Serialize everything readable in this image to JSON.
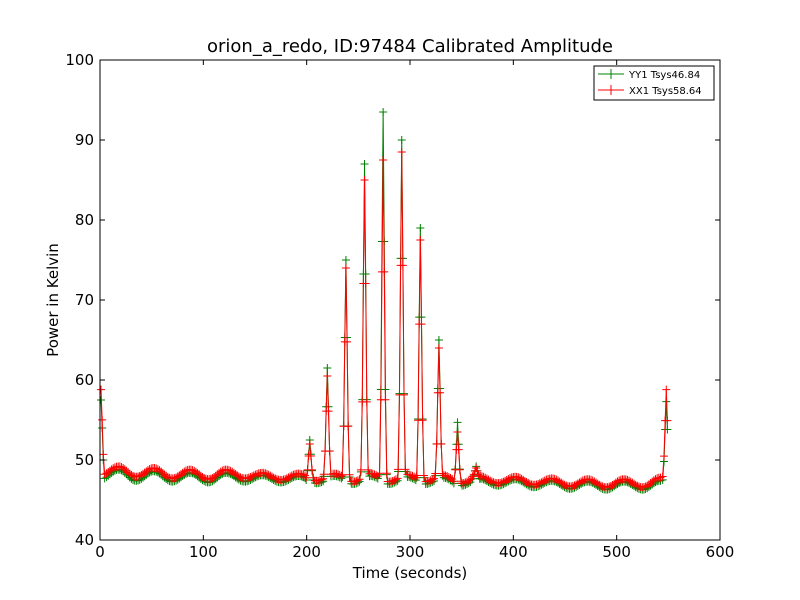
{
  "chart_data": {
    "type": "line",
    "title": "orion_a_redo, ID:97484 Calibrated Amplitude",
    "xlabel": "Time (seconds)",
    "ylabel": "Power in Kelvin",
    "xlim": [
      0,
      600
    ],
    "ylim": [
      40,
      100
    ],
    "xticks": [
      "0",
      "100",
      "200",
      "300",
      "400",
      "500",
      "600"
    ],
    "yticks": [
      "40",
      "50",
      "60",
      "70",
      "80",
      "90",
      "100"
    ],
    "grid": false,
    "legend_position": "top-right",
    "marker": "plus",
    "series": [
      {
        "name": "YY1 Tsys46.84",
        "color": "#008000",
        "baseline": {
          "x": [
            0,
            18,
            35,
            52,
            70,
            87,
            105,
            122,
            140,
            157,
            175,
            192,
            210,
            227,
            245,
            262,
            280,
            297,
            315,
            332,
            350,
            367,
            385,
            402,
            420,
            437,
            455,
            472,
            490,
            507,
            525,
            542,
            550
          ],
          "y": [
            47.5,
            48.8,
            47.4,
            48.6,
            47.3,
            48.4,
            47.2,
            48.4,
            47.3,
            48.1,
            47.2,
            48.0,
            47.1,
            48.0,
            47.0,
            48.0,
            47.0,
            47.9,
            47.0,
            47.8,
            46.8,
            47.7,
            46.8,
            47.6,
            46.6,
            47.4,
            46.4,
            47.3,
            46.3,
            47.3,
            46.3,
            47.4,
            47.3
          ]
        },
        "peaks": [
          {
            "x": 1,
            "y": 57.5
          },
          {
            "x": 203,
            "y": 52.5
          },
          {
            "x": 220,
            "y": 61.5
          },
          {
            "x": 238,
            "y": 75.0
          },
          {
            "x": 256,
            "y": 87.0
          },
          {
            "x": 274,
            "y": 93.5
          },
          {
            "x": 292,
            "y": 90.0
          },
          {
            "x": 310,
            "y": 79.0
          },
          {
            "x": 328,
            "y": 65.0
          },
          {
            "x": 346,
            "y": 54.7
          },
          {
            "x": 364,
            "y": 49.2
          },
          {
            "x": 548,
            "y": 57.3
          }
        ]
      },
      {
        "name": "XX1 Tsys58.64",
        "color": "#ff0000",
        "baseline": {
          "x": [
            0,
            18,
            35,
            52,
            70,
            87,
            105,
            122,
            140,
            157,
            175,
            192,
            210,
            227,
            245,
            262,
            280,
            297,
            315,
            332,
            350,
            367,
            385,
            402,
            420,
            437,
            455,
            472,
            490,
            507,
            525,
            542,
            550
          ],
          "y": [
            48.0,
            49.2,
            47.9,
            49.0,
            47.7,
            48.8,
            47.6,
            48.8,
            47.7,
            48.4,
            47.5,
            48.3,
            47.4,
            48.3,
            47.3,
            48.3,
            47.3,
            48.2,
            47.3,
            48.1,
            47.1,
            48.0,
            47.1,
            47.9,
            46.9,
            47.7,
            46.7,
            47.6,
            46.6,
            47.6,
            46.6,
            47.8,
            47.7
          ]
        },
        "peaks": [
          {
            "x": 1,
            "y": 58.8
          },
          {
            "x": 203,
            "y": 52.0
          },
          {
            "x": 220,
            "y": 60.5
          },
          {
            "x": 238,
            "y": 74.0
          },
          {
            "x": 256,
            "y": 85.0
          },
          {
            "x": 274,
            "y": 87.5
          },
          {
            "x": 292,
            "y": 88.5
          },
          {
            "x": 310,
            "y": 77.5
          },
          {
            "x": 328,
            "y": 64.0
          },
          {
            "x": 346,
            "y": 53.5
          },
          {
            "x": 364,
            "y": 49.0
          },
          {
            "x": 548,
            "y": 58.8
          }
        ]
      }
    ]
  }
}
